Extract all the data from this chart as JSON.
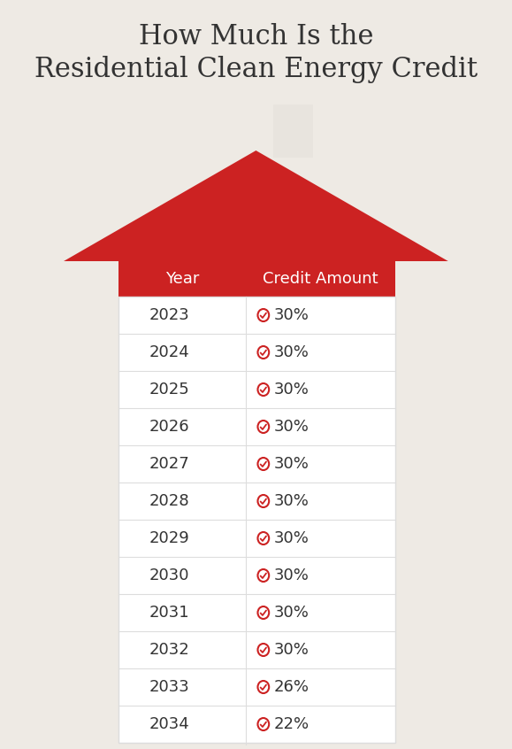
{
  "title_line1": "How Much Is the",
  "title_line2": "Residential Clean Energy Credit",
  "background_color": "#eeeae4",
  "roof_color": "#cc2222",
  "chimney_color": "#e8e4de",
  "header_color": "#cc2222",
  "header_text_color": "#ffffff",
  "table_bg_color": "#ffffff",
  "year_col_header": "Year",
  "credit_col_header": "Credit Amount",
  "rows": [
    {
      "year": "2023",
      "credit": "30%"
    },
    {
      "year": "2024",
      "credit": "30%"
    },
    {
      "year": "2025",
      "credit": "30%"
    },
    {
      "year": "2026",
      "credit": "30%"
    },
    {
      "year": "2027",
      "credit": "30%"
    },
    {
      "year": "2028",
      "credit": "30%"
    },
    {
      "year": "2029",
      "credit": "30%"
    },
    {
      "year": "2030",
      "credit": "30%"
    },
    {
      "year": "2031",
      "credit": "30%"
    },
    {
      "year": "2032",
      "credit": "30%"
    },
    {
      "year": "2033",
      "credit": "26%"
    },
    {
      "year": "2034",
      "credit": "22%"
    }
  ],
  "icon_color": "#cc2222",
  "year_text_color": "#333333",
  "credit_text_color": "#333333",
  "divider_color": "#dddddd",
  "row_alt_color": "#f9f8f6"
}
